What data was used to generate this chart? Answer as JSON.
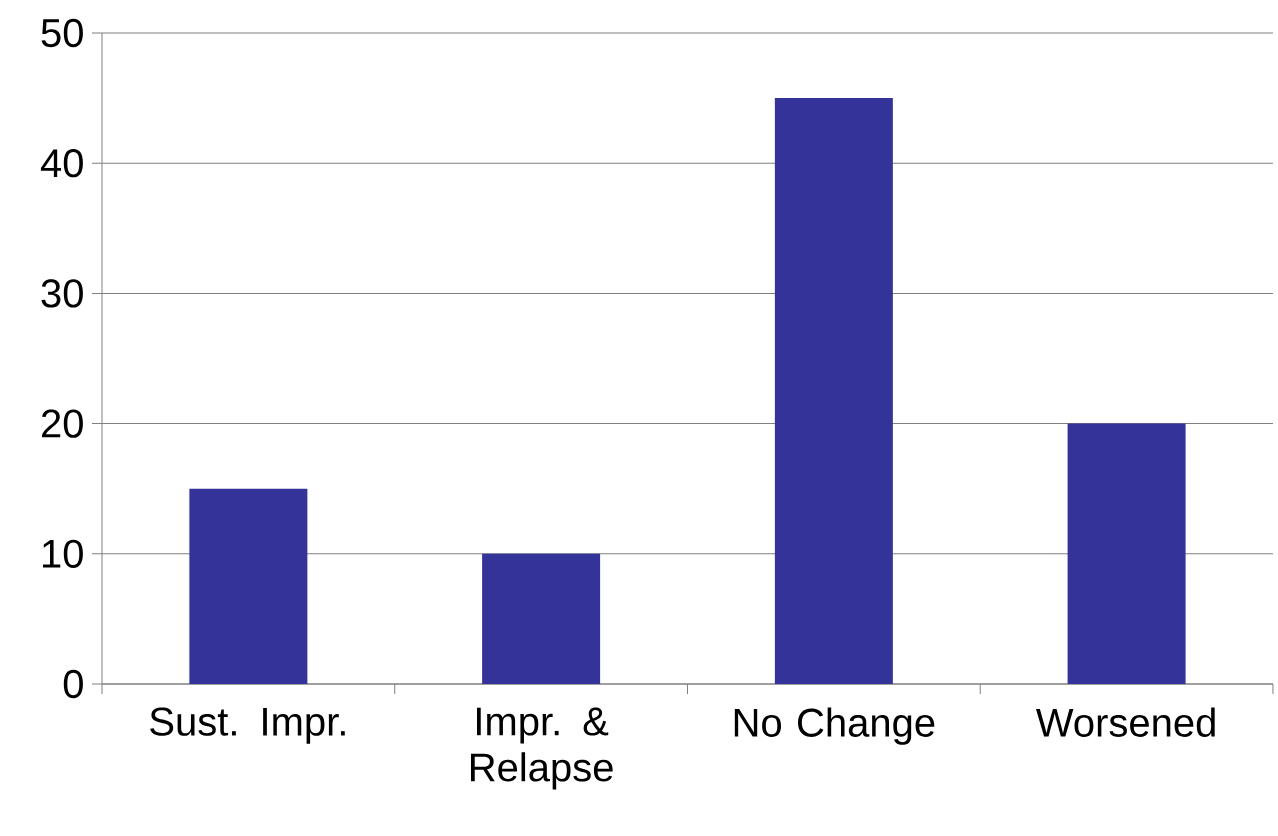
{
  "chart_data": {
    "type": "bar",
    "categories": [
      "Sust. Impr.",
      "Impr. & Relapse",
      "No Change",
      "Worsened"
    ],
    "values": [
      15,
      10,
      45,
      20
    ],
    "color": "#333399",
    "ylim": [
      0,
      50
    ],
    "yticks": [
      0,
      10,
      20,
      30,
      40,
      50
    ],
    "grid": "y"
  }
}
